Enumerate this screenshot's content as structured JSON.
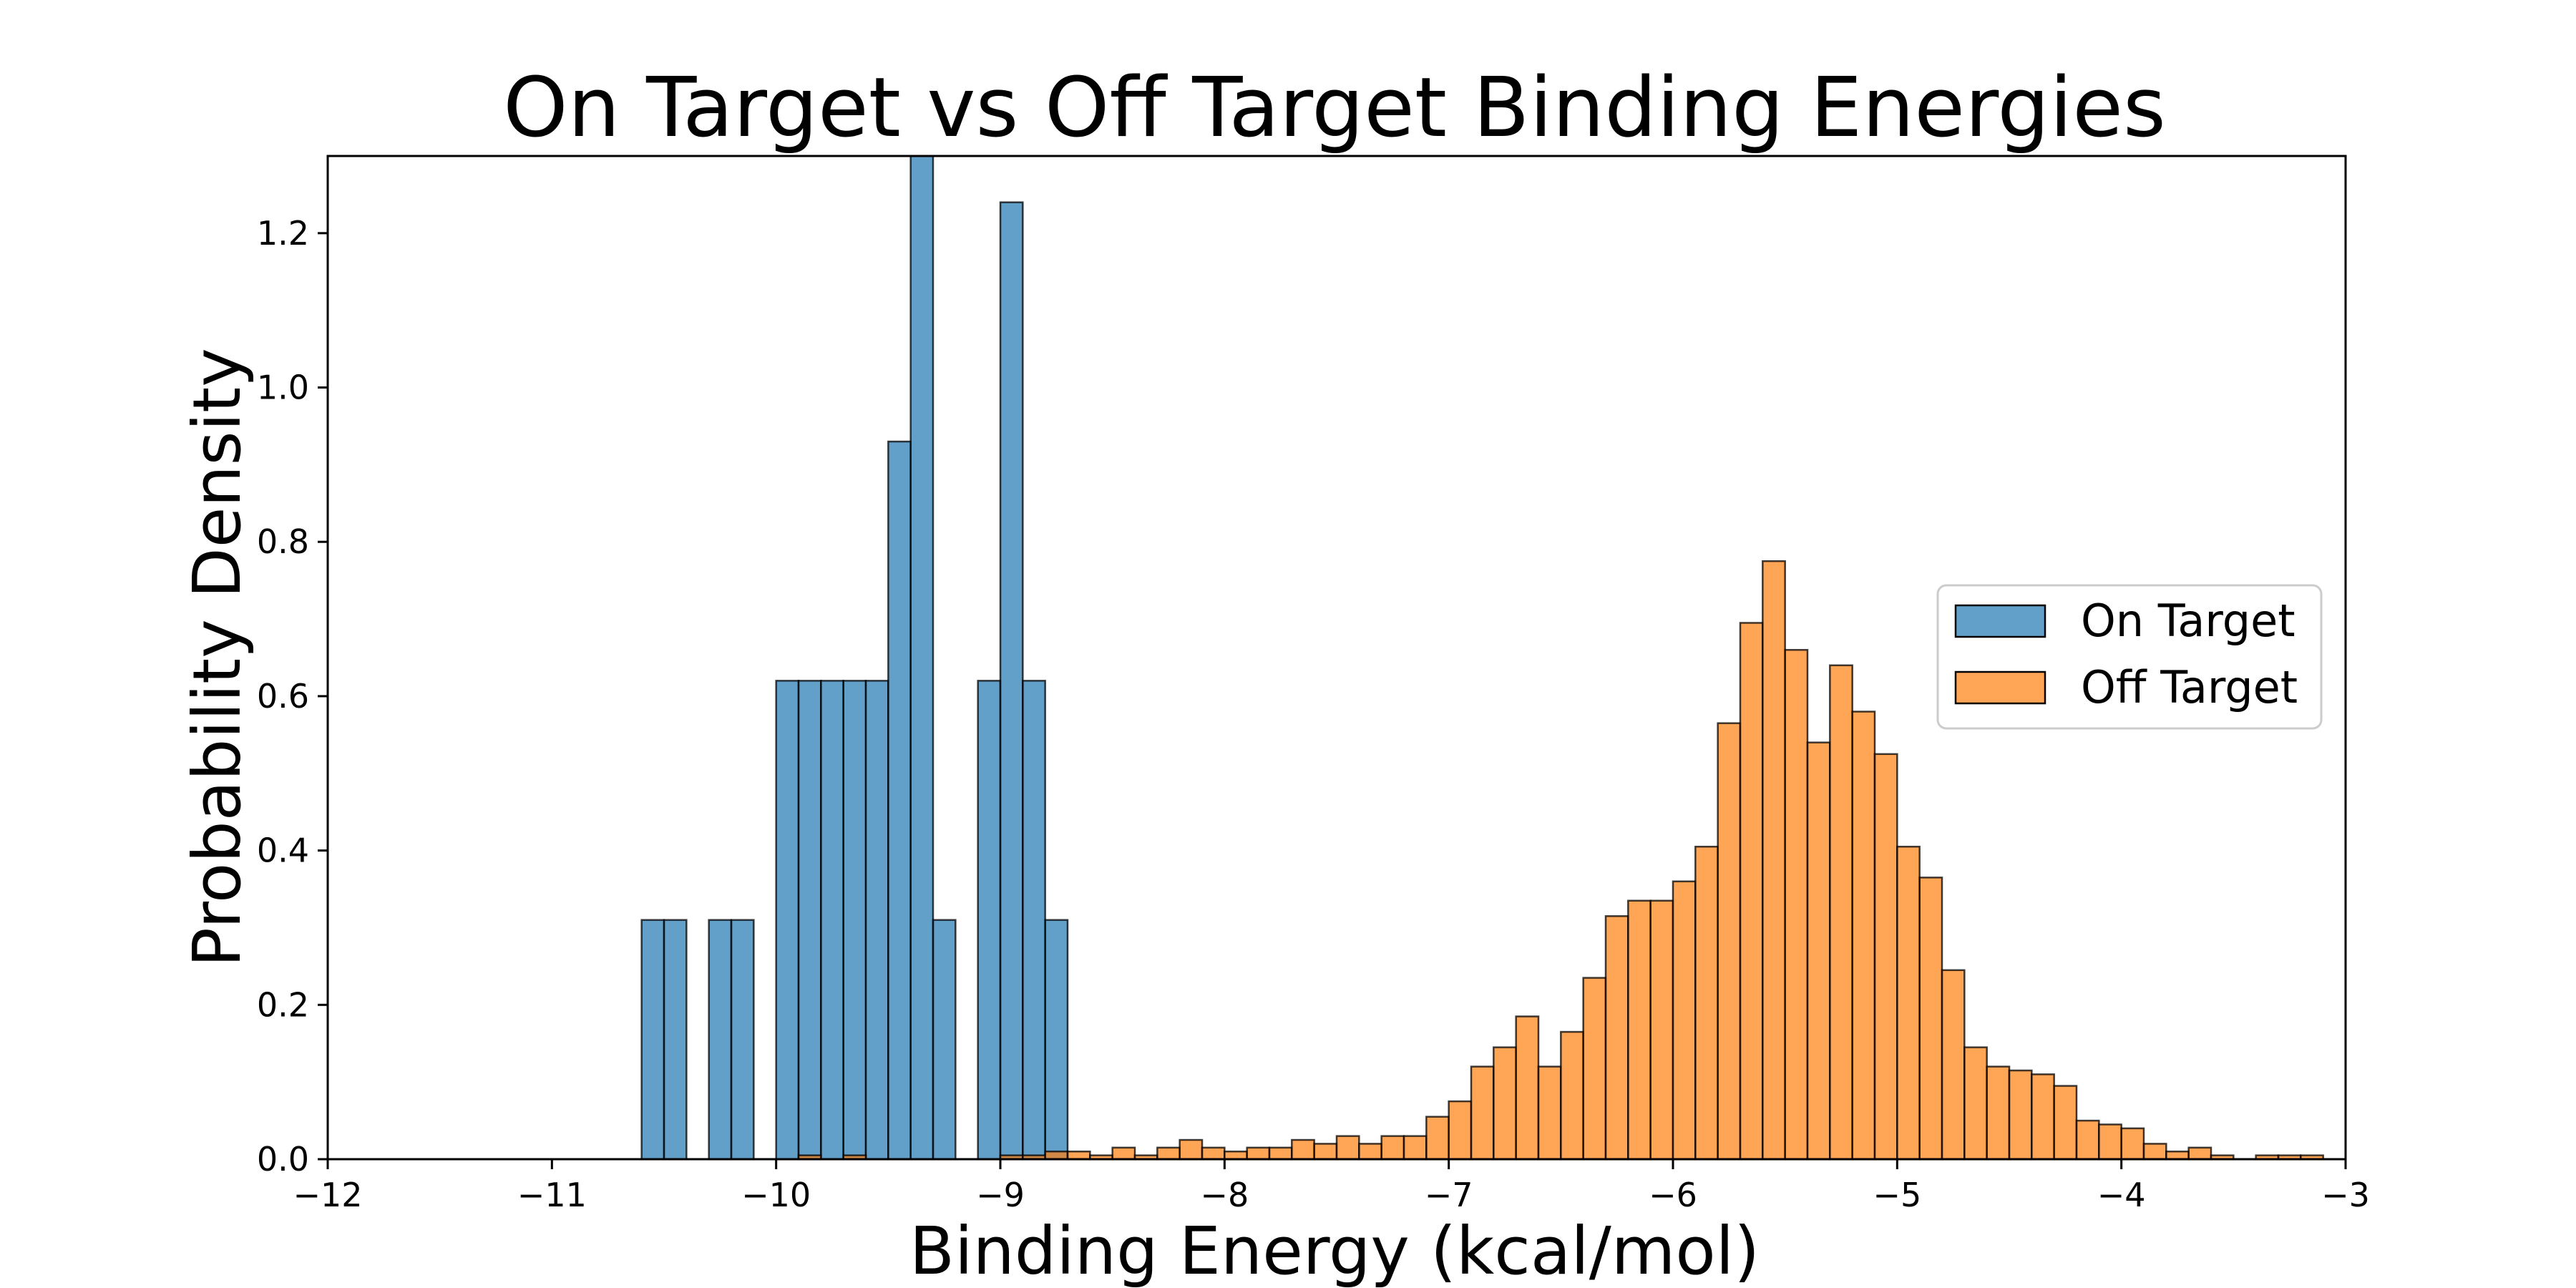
{
  "chart_data": {
    "type": "bar",
    "title": "On Target vs Off Target Binding Energies",
    "xlabel": "Binding Energy (kcal/mol)",
    "ylabel": "Probability Density",
    "xlim": [
      -12,
      -3
    ],
    "ylim": [
      0,
      1.3
    ],
    "xticks": [
      -12,
      -11,
      -10,
      -9,
      -8,
      -7,
      -6,
      -5,
      -4,
      -3
    ],
    "xtick_labels": [
      "−12",
      "−11",
      "−10",
      "−9",
      "−8",
      "−7",
      "−6",
      "−5",
      "−4",
      "−3"
    ],
    "yticks": [
      0.0,
      0.2,
      0.4,
      0.6,
      0.8,
      1.0,
      1.2
    ],
    "ytick_labels": [
      "0.0",
      "0.2",
      "0.4",
      "0.6",
      "0.8",
      "1.0",
      "1.2"
    ],
    "grid": false,
    "legend_position": "right",
    "series": [
      {
        "name": "On Target",
        "color": "#1f77b4",
        "bin_width": 0.1,
        "bins": [
          [
            -10.6,
            0.31
          ],
          [
            -10.5,
            0.31
          ],
          [
            -10.3,
            0.31
          ],
          [
            -10.2,
            0.31
          ],
          [
            -10.0,
            0.62
          ],
          [
            -9.9,
            0.62
          ],
          [
            -9.8,
            0.62
          ],
          [
            -9.7,
            0.62
          ],
          [
            -9.6,
            0.62
          ],
          [
            -9.5,
            0.93
          ],
          [
            -9.4,
            1.3
          ],
          [
            -9.3,
            0.31
          ],
          [
            -9.1,
            0.62
          ],
          [
            -9.0,
            1.24
          ],
          [
            -8.9,
            0.62
          ],
          [
            -8.8,
            0.31
          ]
        ]
      },
      {
        "name": "Off Target",
        "color": "#ff7f0e",
        "bin_width": 0.1,
        "bins": [
          [
            -9.9,
            0.005
          ],
          [
            -9.7,
            0.005
          ],
          [
            -9.0,
            0.005
          ],
          [
            -8.9,
            0.005
          ],
          [
            -8.8,
            0.01
          ],
          [
            -8.7,
            0.01
          ],
          [
            -8.6,
            0.005
          ],
          [
            -8.5,
            0.015
          ],
          [
            -8.4,
            0.005
          ],
          [
            -8.3,
            0.015
          ],
          [
            -8.2,
            0.025
          ],
          [
            -8.1,
            0.015
          ],
          [
            -8.0,
            0.01
          ],
          [
            -7.9,
            0.015
          ],
          [
            -7.8,
            0.015
          ],
          [
            -7.7,
            0.025
          ],
          [
            -7.6,
            0.02
          ],
          [
            -7.5,
            0.03
          ],
          [
            -7.4,
            0.02
          ],
          [
            -7.3,
            0.03
          ],
          [
            -7.2,
            0.03
          ],
          [
            -7.1,
            0.055
          ],
          [
            -7.0,
            0.075
          ],
          [
            -6.9,
            0.12
          ],
          [
            -6.8,
            0.145
          ],
          [
            -6.7,
            0.185
          ],
          [
            -6.6,
            0.12
          ],
          [
            -6.5,
            0.165
          ],
          [
            -6.4,
            0.235
          ],
          [
            -6.3,
            0.315
          ],
          [
            -6.2,
            0.335
          ],
          [
            -6.1,
            0.335
          ],
          [
            -6.0,
            0.36
          ],
          [
            -5.9,
            0.405
          ],
          [
            -5.8,
            0.565
          ],
          [
            -5.7,
            0.695
          ],
          [
            -5.6,
            0.775
          ],
          [
            -5.5,
            0.66
          ],
          [
            -5.4,
            0.54
          ],
          [
            -5.3,
            0.64
          ],
          [
            -5.2,
            0.58
          ],
          [
            -5.1,
            0.525
          ],
          [
            -5.0,
            0.405
          ],
          [
            -4.9,
            0.365
          ],
          [
            -4.8,
            0.245
          ],
          [
            -4.7,
            0.145
          ],
          [
            -4.6,
            0.12
          ],
          [
            -4.5,
            0.115
          ],
          [
            -4.4,
            0.11
          ],
          [
            -4.3,
            0.095
          ],
          [
            -4.2,
            0.05
          ],
          [
            -4.1,
            0.045
          ],
          [
            -4.0,
            0.04
          ],
          [
            -3.9,
            0.02
          ],
          [
            -3.8,
            0.01
          ],
          [
            -3.7,
            0.015
          ],
          [
            -3.6,
            0.005
          ],
          [
            -3.4,
            0.005
          ],
          [
            -3.3,
            0.005
          ],
          [
            -3.2,
            0.005
          ]
        ]
      }
    ]
  }
}
